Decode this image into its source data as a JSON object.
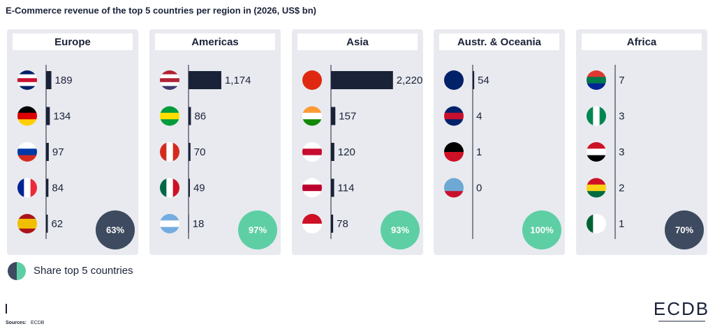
{
  "title": "E-Commerce revenue of the top 5 countries per region in (2026, US$ bn)",
  "chart_data": [
    {
      "type": "bar",
      "orientation": "horizontal",
      "title": "Europe",
      "values": [
        189,
        134,
        97,
        84,
        62
      ],
      "color": "#1a2238",
      "xlim": [
        0,
        2250
      ],
      "share": {
        "value": 63,
        "label": "63%"
      },
      "share_color": "#3d4a5f"
    },
    {
      "type": "bar",
      "orientation": "horizontal",
      "title": "Americas",
      "values": [
        1174,
        86,
        70,
        49,
        18
      ],
      "value_labels": [
        "1,174",
        "86",
        "70",
        "49",
        "18"
      ],
      "color": "#1a2238",
      "xlim": [
        0,
        2250
      ],
      "share": {
        "value": 97,
        "label": "97%"
      },
      "share_color": "#5ecfa5"
    },
    {
      "type": "bar",
      "orientation": "horizontal",
      "title": "Asia",
      "values": [
        2220,
        157,
        120,
        114,
        78
      ],
      "value_labels": [
        "2,220",
        "157",
        "120",
        "114",
        "78"
      ],
      "color": "#1a2238",
      "xlim": [
        0,
        2250
      ],
      "share": {
        "value": 93,
        "label": "93%"
      },
      "share_color": "#5ecfa5"
    },
    {
      "type": "bar",
      "orientation": "horizontal",
      "title": "Austr. & Oceania",
      "values": [
        54,
        4,
        1,
        0
      ],
      "color": "#1a2238",
      "xlim": [
        0,
        2250
      ],
      "share": {
        "value": 100,
        "label": "100%"
      },
      "share_color": "#5ecfa5"
    },
    {
      "type": "bar",
      "orientation": "horizontal",
      "title": "Africa",
      "values": [
        7,
        3,
        3,
        2,
        1
      ],
      "color": "#1a2238",
      "xlim": [
        0,
        2250
      ],
      "share": {
        "value": 70,
        "label": "70%"
      },
      "share_color": "#3d4a5f"
    }
  ],
  "legend": {
    "label": "Share top 5 countries",
    "colors": [
      "#3d4a5f",
      "#5ecfa5"
    ]
  },
  "source": {
    "label": "Sources:",
    "text": "ECDB"
  },
  "logo": "ECDB"
}
